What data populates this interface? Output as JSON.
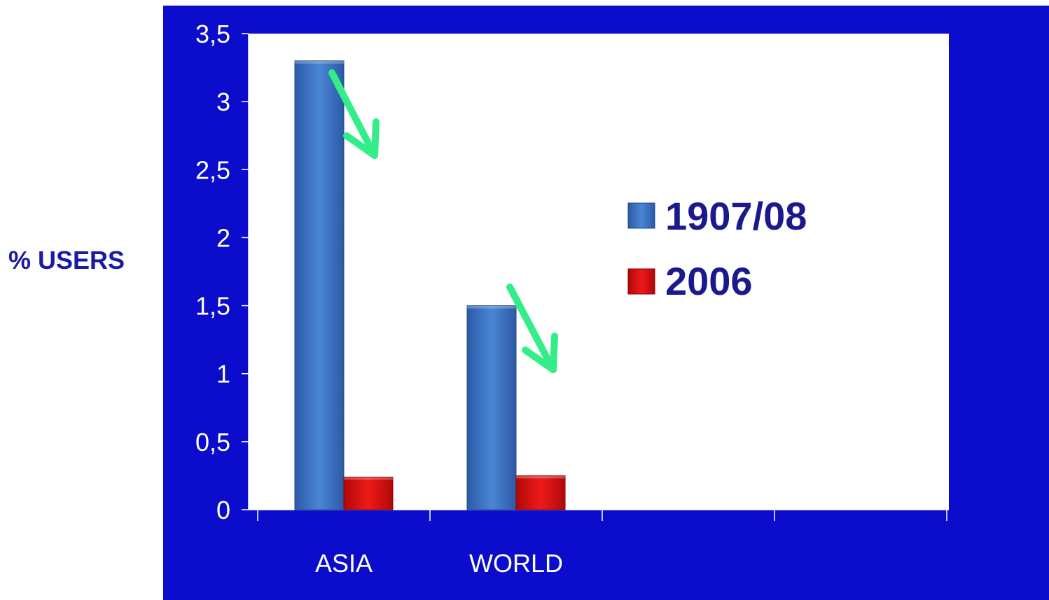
{
  "colors": {
    "frame": "#0c0ccc",
    "plot_bg": "#ffffff",
    "series_1907": "#3a72c0",
    "series_2006": "#d81010",
    "arrow": "#33ee88",
    "axis_text": "#ffffff",
    "legend_text": "#1a1a8c",
    "ylabel_text": "#1a1aa6"
  },
  "chart_data": {
    "type": "bar",
    "ylabel": "% USERS",
    "xlabel": "",
    "ylim": [
      0,
      3.5
    ],
    "y_ticks": [
      "0",
      "0,5",
      "1",
      "1,5",
      "2",
      "2,5",
      "3",
      "3,5"
    ],
    "categories": [
      "ASIA",
      "WORLD",
      "",
      ""
    ],
    "series": [
      {
        "name": "1907/08",
        "values": [
          3.3,
          1.5,
          null,
          null
        ]
      },
      {
        "name": "2006",
        "values": [
          0.24,
          0.25,
          null,
          null
        ]
      }
    ],
    "legend_position": "center-right",
    "annotations": [
      "downward arrow above ASIA bar",
      "downward arrow above WORLD bar"
    ],
    "grid": false
  }
}
